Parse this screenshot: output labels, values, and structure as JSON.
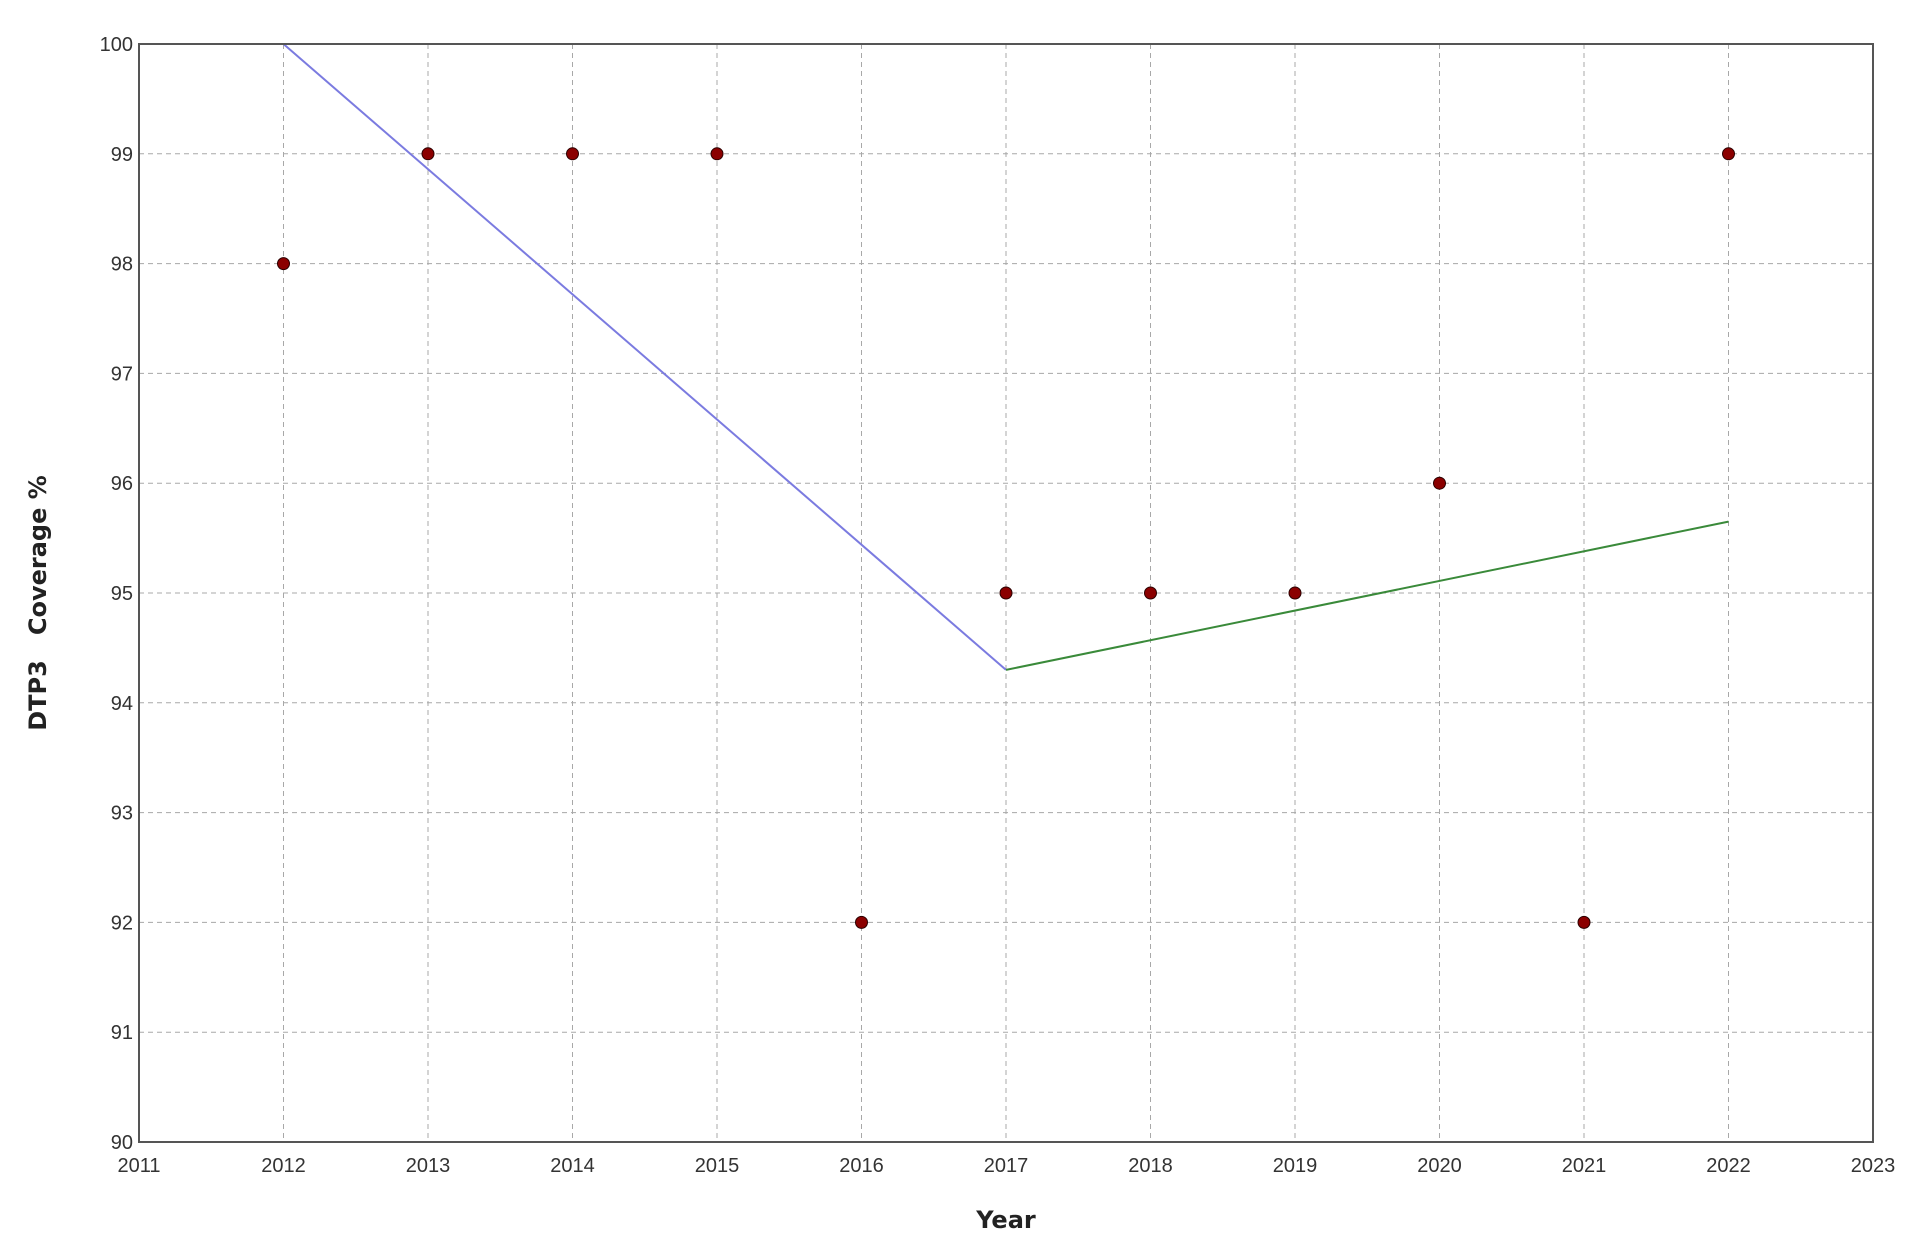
{
  "chart_data": {
    "type": "scatter",
    "title": "",
    "xlabel": "Year",
    "ylabel": "DTP3   Coverage %",
    "xlim": [
      2011,
      2023
    ],
    "ylim": [
      90,
      100
    ],
    "x_ticks": [
      "2011",
      "2012",
      "2013",
      "2014",
      "2015",
      "2016",
      "2017",
      "2018",
      "2019",
      "2020",
      "2021",
      "2022",
      "2023"
    ],
    "y_ticks": [
      "90",
      "91",
      "92",
      "93",
      "94",
      "95",
      "96",
      "97",
      "98",
      "99",
      "100"
    ],
    "grid": true,
    "legend": false,
    "points": {
      "color": "#8b0000",
      "x": [
        2012,
        2013,
        2014,
        2015,
        2016,
        2017,
        2018,
        2019,
        2020,
        2021,
        2022
      ],
      "y": [
        98,
        99,
        99,
        99,
        92,
        95,
        95,
        95,
        96,
        92,
        99
      ]
    },
    "trend_lines": [
      {
        "color": "#7b7be0",
        "x": [
          2012,
          2017
        ],
        "y": [
          100,
          94.3
        ]
      },
      {
        "color": "#3a8a3a",
        "x": [
          2017,
          2022
        ],
        "y": [
          94.3,
          95.65
        ]
      }
    ]
  }
}
